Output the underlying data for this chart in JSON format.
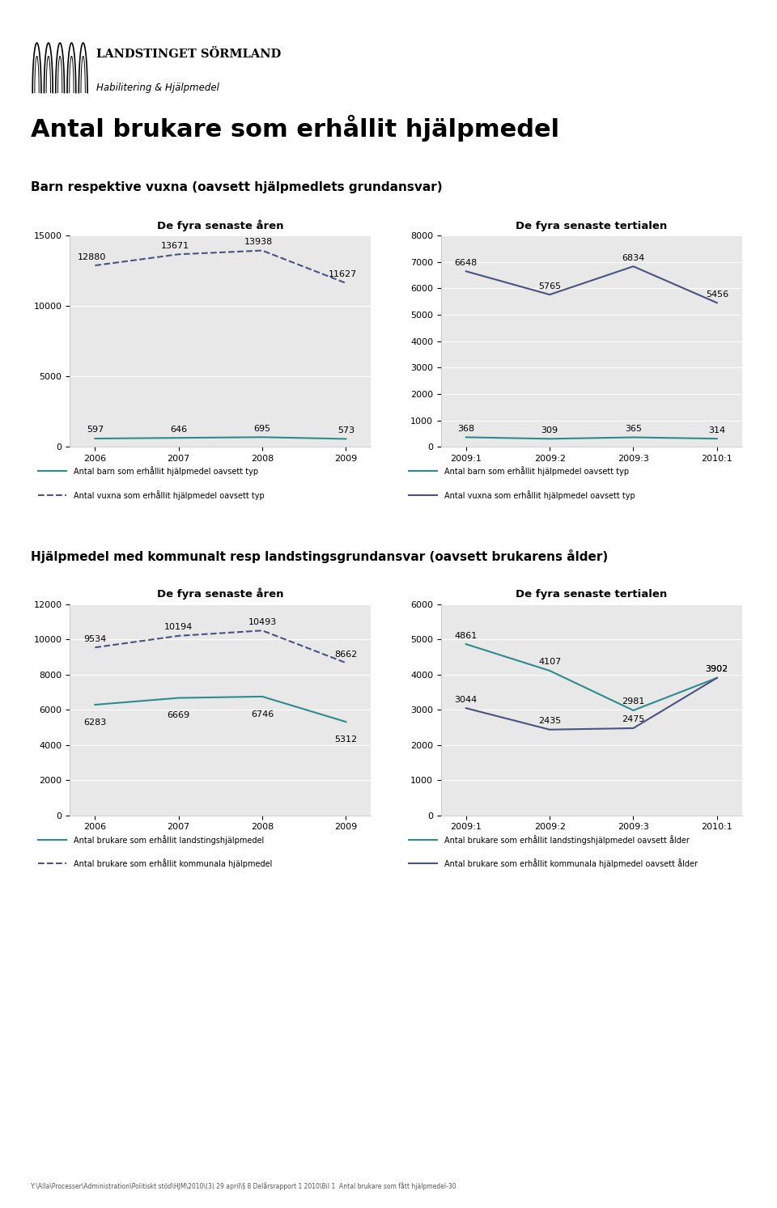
{
  "title": "Antal brukare som erhållit hjälpmedel",
  "subtitle1": "Barn respektive vuxna (oavsett hjälpmedlets grundansvar)",
  "subtitle2": "Hjälpmedel med kommunalt resp landstingsgrundansvar (oavsett brukarens ålder)",
  "section1": {
    "left_chart": {
      "title": "De fyra senaste åren",
      "x_labels": [
        "2006",
        "2007",
        "2008",
        "2009"
      ],
      "barn_values": [
        597,
        646,
        695,
        573
      ],
      "vuxna_values": [
        12880,
        13671,
        13938,
        11627
      ],
      "ylim": [
        0,
        15000
      ],
      "yticks": [
        0,
        5000,
        10000,
        15000
      ]
    },
    "right_chart": {
      "title": "De fyra senaste tertialen",
      "x_labels": [
        "2009:1",
        "2009:2",
        "2009:3",
        "2010:1"
      ],
      "barn_values": [
        368,
        309,
        365,
        314
      ],
      "vuxna_values": [
        6648,
        5765,
        6834,
        5456
      ],
      "ylim": [
        0,
        8000
      ],
      "yticks": [
        0,
        1000,
        2000,
        3000,
        4000,
        5000,
        6000,
        7000,
        8000
      ]
    },
    "barn_color": "#2e8b8b",
    "vuxna_color": "#4a5280",
    "legend_left": [
      "Antal barn som erhållit hjälpmedel oavsett typ",
      "Antal vuxna som erhållit hjälpmedel oavsett typ"
    ],
    "legend_right": [
      "Antal barn som erhållit hjälpmedel oavsett typ",
      "Antal vuxna som erhållit hjälpmedel oavsett typ"
    ]
  },
  "section2": {
    "left_chart": {
      "title": "De fyra senaste åren",
      "x_labels": [
        "2006",
        "2007",
        "2008",
        "2009"
      ],
      "landsting_values": [
        6283,
        6669,
        6746,
        5312
      ],
      "kommunal_values": [
        9534,
        10194,
        10493,
        8662
      ],
      "ylim": [
        0,
        12000
      ],
      "yticks": [
        0,
        2000,
        4000,
        6000,
        8000,
        10000,
        12000
      ]
    },
    "right_chart": {
      "title": "De fyra senaste tertialen",
      "x_labels": [
        "2009:1",
        "2009:2",
        "2009:3",
        "2010:1"
      ],
      "landsting_values": [
        4861,
        4107,
        2981,
        3902
      ],
      "kommunal_values": [
        3044,
        2435,
        2475,
        3902
      ],
      "ylim": [
        0,
        6000
      ],
      "yticks": [
        0,
        1000,
        2000,
        3000,
        4000,
        5000,
        6000
      ]
    },
    "landsting_color": "#2e8b8b",
    "kommunal_color": "#4a5280",
    "legend_left": [
      "Antal brukare som erhållit landstingshjälpmedel",
      "Antal brukare som erhållit kommunala hjälpmedel"
    ],
    "legend_right": [
      "Antal brukare som erhållit landstingshjälpmedel oavsett ålder",
      "Antal brukare som erhållit kommunala hjälpmedel oavsett ålder"
    ]
  },
  "background_color": "#ffffff",
  "plot_area_bg": "#e8e8e8",
  "chart_outer_bg": "#f5f5f5",
  "grid_color": "#ffffff",
  "footer_text": "Y:\\Alla\\Processer\\Administration\\Politiskt stöd\\HJM\\2010\\(3) 29 april\\§ 8 Delårsrapport 1 2010\\Bil 1  Antal brukare som fått hjälpmedel-30"
}
